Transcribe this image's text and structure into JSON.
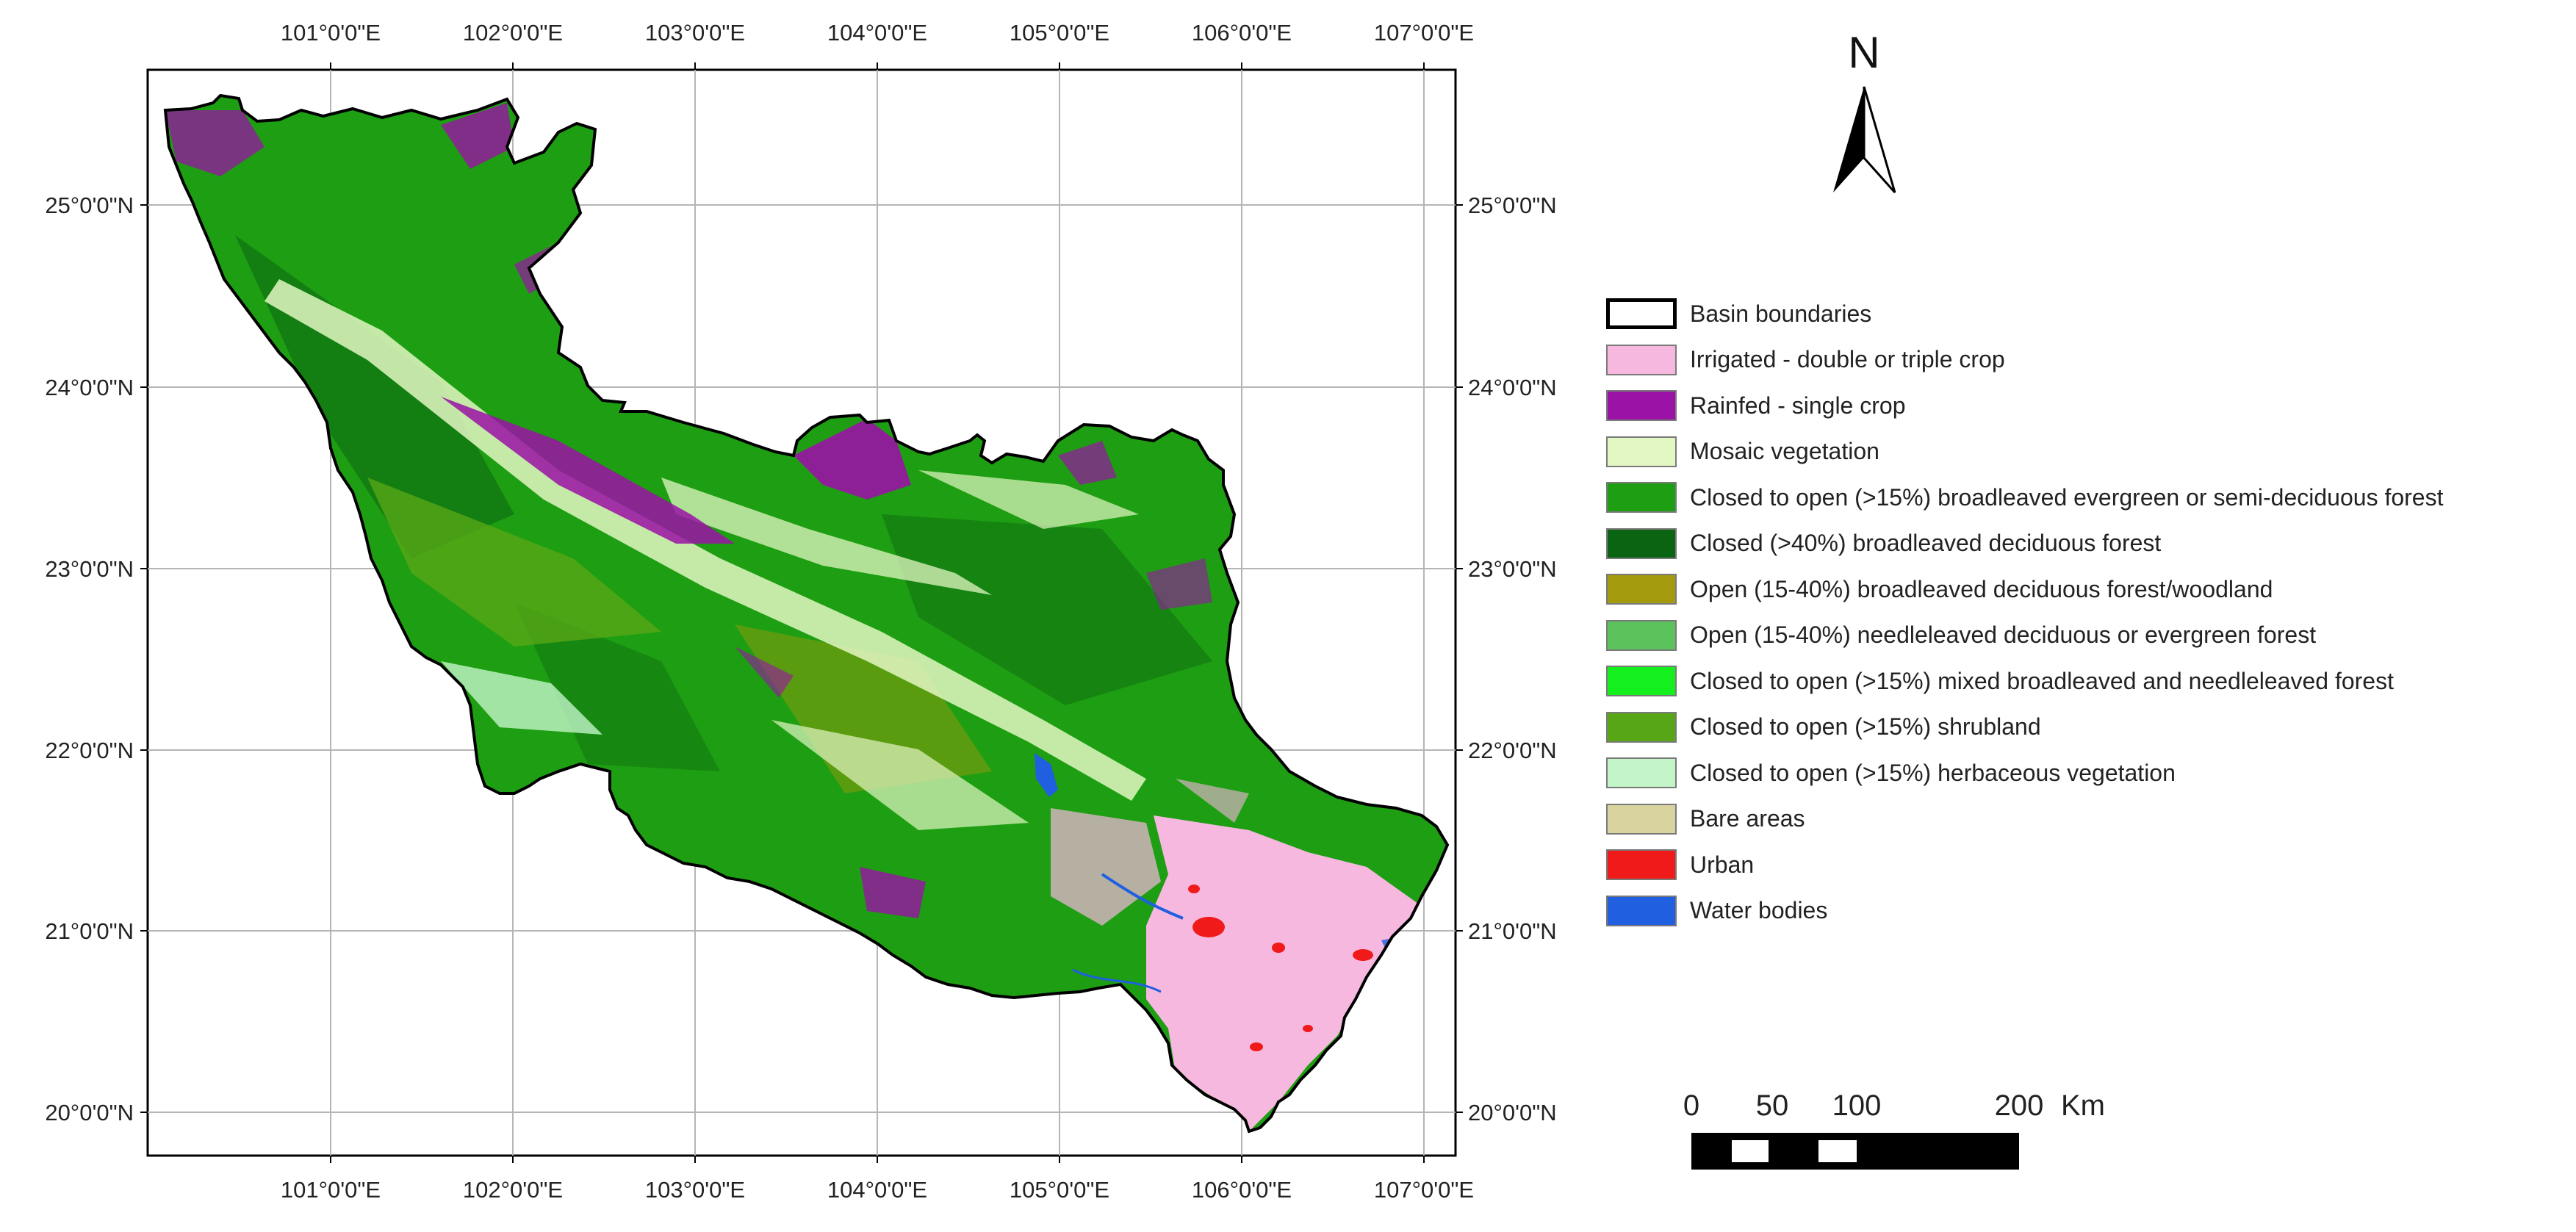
{
  "map": {
    "lon_ticks": [
      "101°0'0\"E",
      "102°0'0\"E",
      "103°0'0\"E",
      "104°0'0\"E",
      "105°0'0\"E",
      "106°0'0\"E",
      "107°0'0\"E"
    ],
    "lat_ticks": [
      "25°0'0\"N",
      "24°0'0\"N",
      "23°0'0\"N",
      "22°0'0\"N",
      "21°0'0\"N",
      "20°0'0\"N"
    ]
  },
  "north_arrow": {
    "label": "N"
  },
  "legend": {
    "items": [
      {
        "label": "Basin boundaries",
        "color": "#ffffff",
        "type": "boundary"
      },
      {
        "label": "Irrigated - double or triple crop",
        "color": "#f7b8e0"
      },
      {
        "label": "Rainfed - single crop",
        "color": "#9a12a6"
      },
      {
        "label": "Mosaic vegetation",
        "color": "#e3f7c3"
      },
      {
        "label": "Closed to open (>15%) broadleaved evergreen or semi-deciduous forest",
        "color": "#1e9e12"
      },
      {
        "label": "Closed (>40%) broadleaved deciduous forest",
        "color": "#0b6412"
      },
      {
        "label": "Open (15-40%) broadleaved deciduous forest/woodland",
        "color": "#a39a0d"
      },
      {
        "label": "Open (15-40%) needleleaved deciduous or evergreen forest",
        "color": "#5cc35c"
      },
      {
        "label": "Closed to open (>15%) mixed broadleaved and needleleaved forest",
        "color": "#14ef1e"
      },
      {
        "label": "Closed to open (>15%) shrubland",
        "color": "#56a615"
      },
      {
        "label": "Closed to open (>15%) herbaceous vegetation",
        "color": "#c3f5c8"
      },
      {
        "label": "Bare areas",
        "color": "#d9d3a0"
      },
      {
        "label": "Urban",
        "color": "#f01a1a"
      },
      {
        "label": "Water bodies",
        "color": "#1f5fe0"
      }
    ]
  },
  "scale_bar": {
    "labels": [
      "0",
      "50",
      "100",
      "200"
    ],
    "unit": "Km"
  }
}
